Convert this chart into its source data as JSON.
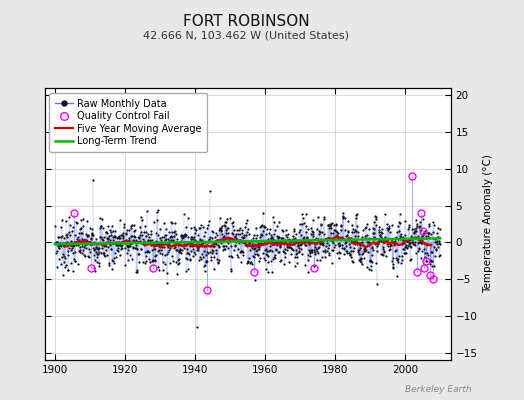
{
  "title": "FORT ROBINSON",
  "subtitle": "42.666 N, 103.462 W (United States)",
  "ylabel": "Temperature Anomaly (°C)",
  "credit": "Berkeley Earth",
  "xlim": [
    1897,
    2013
  ],
  "ylim": [
    -16,
    21
  ],
  "yticks": [
    -15,
    -10,
    -5,
    0,
    5,
    10,
    15,
    20
  ],
  "xticks": [
    1900,
    1920,
    1940,
    1960,
    1980,
    2000
  ],
  "bg_color": "#e8e8e8",
  "plot_bg_color": "#ffffff",
  "seed": 7,
  "n_monthly": 1320,
  "start_year": 1900,
  "end_year": 2010,
  "moving_avg_color": "#cc0000",
  "trend_color": "#00bb00",
  "raw_line_color": "#5577ff",
  "raw_dot_color": "#111111",
  "qc_color": "#ff00ff",
  "title_fontsize": 11,
  "subtitle_fontsize": 8,
  "label_fontsize": 7.5,
  "tick_fontsize": 7.5,
  "legend_fontsize": 7
}
